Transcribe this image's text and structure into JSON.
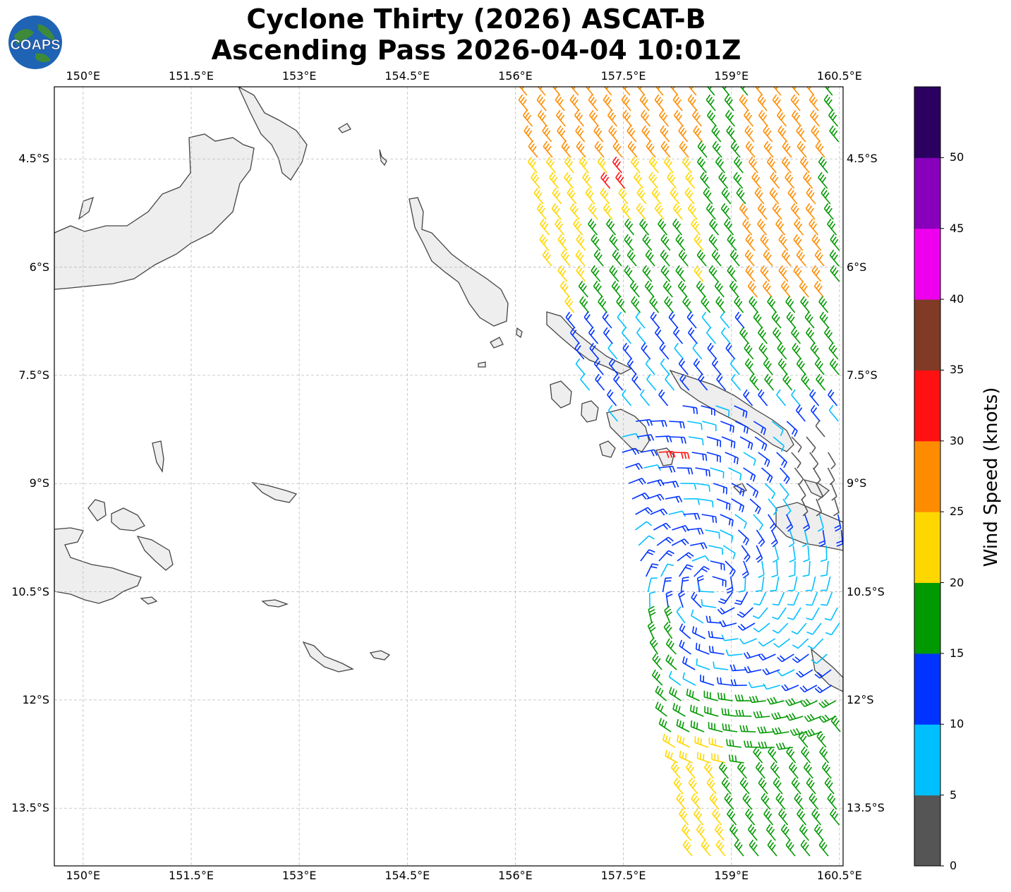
{
  "header": {
    "line1": "Cyclone Thirty (2026) ASCAT-B",
    "line2": "Ascending Pass 2026-04-04 10:01Z",
    "logo_text": "COAPS"
  },
  "map": {
    "lon_range": [
      149.6,
      160.55
    ],
    "lat_range": [
      -14.3,
      -3.5
    ],
    "lon_labels": [
      "150°E",
      "151.5°E",
      "153°E",
      "154.5°E",
      "156°E",
      "157.5°E",
      "159°E",
      "160.5°E"
    ],
    "lat_labels": [
      "4.5°S",
      "6°S",
      "7.5°S",
      "9°S",
      "10.5°S",
      "12°S",
      "13.5°S"
    ],
    "land_color": "#f0f0f0",
    "coast_color": "#444444",
    "grid": "dashed"
  },
  "colorbar": {
    "title": "Wind Speed (knots)",
    "ticks": [
      "0",
      "5",
      "10",
      "15",
      "20",
      "25",
      "30",
      "35",
      "40",
      "45",
      "50"
    ],
    "colors": [
      "#555555",
      "#00bfff",
      "#0033ff",
      "#009900",
      "#ffd700",
      "#ff8c00",
      "#ff1111",
      "#803a26",
      "#ee00ee",
      "#8800bb",
      "#2b0060"
    ]
  }
}
